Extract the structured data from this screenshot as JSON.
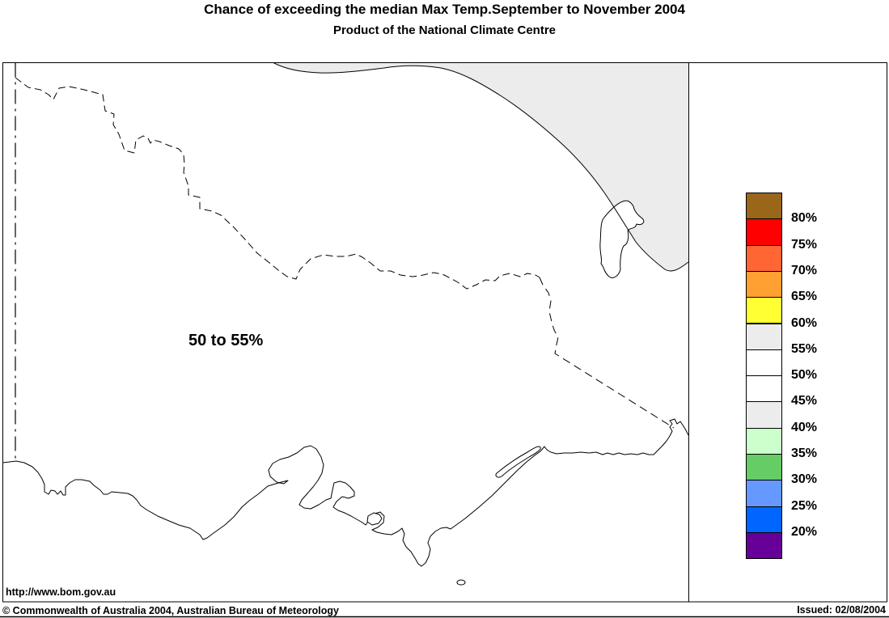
{
  "header": {
    "title": "Chance of exceeding the median Max Temp.September to November 2004",
    "subtitle": "Product of the National Climate Centre"
  },
  "map": {
    "region_label": "50 to 55%",
    "url_label": "http://www.bom.gov.au"
  },
  "legend": {
    "labels": [
      "80%",
      "75%",
      "70%",
      "65%",
      "60%",
      "55%",
      "50%",
      "45%",
      "40%",
      "35%",
      "30%",
      "25%",
      "20%"
    ],
    "colors": [
      "#99661a",
      "#ff0000",
      "#ff6633",
      "#ffa033",
      "#ffff33",
      "#ececec",
      "#ffffff",
      "#ffffff",
      "#ececec",
      "#ccffcc",
      "#66cc66",
      "#6699ff",
      "#0066ff",
      "#660099"
    ],
    "outside_region_fill": "#ececec",
    "map_outline_color": "#000000"
  },
  "footer": {
    "copyright": "© Commonwealth of Australia 2004, Australian Bureau of Meteorology",
    "issued": "Issued: 02/08/2004"
  }
}
